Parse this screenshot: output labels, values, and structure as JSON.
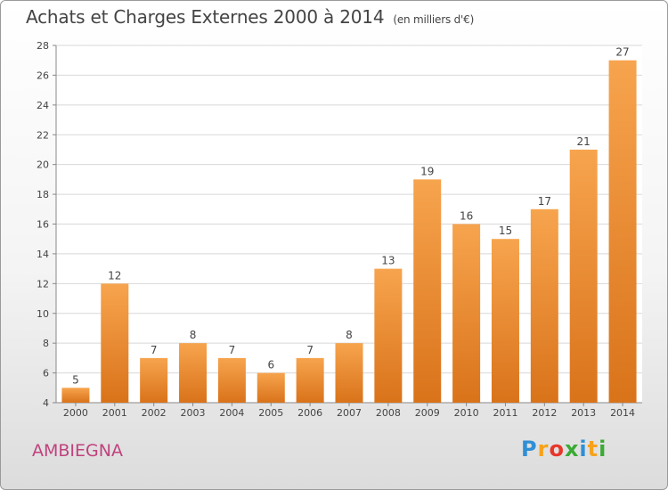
{
  "header": {
    "title": "Achats et Charges Externes 2000 à 2014",
    "subtitle": "(en milliers d'€)"
  },
  "footer": {
    "commune": "AMBIEGNA",
    "brand_letters": [
      "P",
      "r",
      "o",
      "x",
      "i",
      "t",
      "i"
    ],
    "brand_colors": [
      "#2f8fd6",
      "#f7a21b",
      "#e8362a",
      "#3aaa35",
      "#2f8fd6",
      "#f7a21b",
      "#3aaa35"
    ]
  },
  "chart_data": {
    "type": "bar",
    "title": "Achats et Charges Externes 2000 à 2014",
    "subtitle": "(en milliers d'€)",
    "xlabel": "",
    "ylabel": "",
    "categories": [
      "2000",
      "2001",
      "2002",
      "2003",
      "2004",
      "2005",
      "2006",
      "2007",
      "2008",
      "2009",
      "2010",
      "2011",
      "2012",
      "2013",
      "2014"
    ],
    "values": [
      5,
      12,
      7,
      8,
      7,
      6,
      7,
      8,
      13,
      19,
      16,
      15,
      17,
      21,
      27
    ],
    "ylim": [
      4,
      28
    ],
    "yticks": [
      4,
      6,
      8,
      10,
      12,
      14,
      16,
      18,
      20,
      22,
      24,
      26,
      28
    ],
    "grid": true,
    "bar_color_top": "#f7a44e",
    "bar_color_bottom": "#d9731a"
  }
}
